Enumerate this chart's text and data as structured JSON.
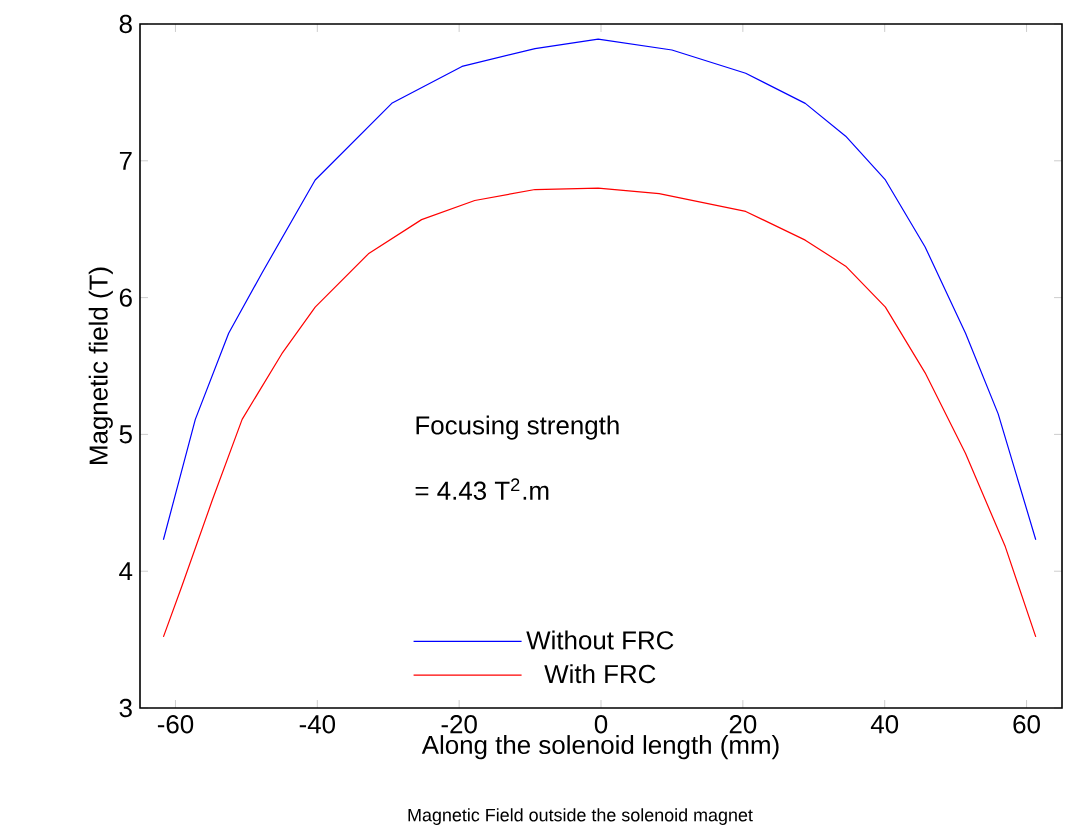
{
  "chart_data": {
    "type": "line",
    "title": "Magnetic Field outside the solenoid magnet",
    "xlabel": "Along the solenoid length (mm)",
    "ylabel": "Magnetic field (T)",
    "annotations": [
      "Focusing strength",
      "= 4.43 T$^{2}$.m"
    ],
    "xlim": [
      -65,
      65
    ],
    "ylim": [
      3,
      8
    ],
    "xticks": [
      -60,
      -40,
      -20,
      0,
      20,
      40,
      60
    ],
    "yticks": [
      3,
      4,
      5,
      6,
      7,
      8
    ],
    "grid": false,
    "legend": "bottom",
    "marker": "none",
    "line_style": "solid",
    "series": [
      {
        "name": "Without FRC",
        "color": "#0000ff",
        "x": [
          -61.7,
          -57.2,
          -52.5,
          -47.8,
          -40.3,
          -29.5,
          -19.6,
          -9.3,
          -0.4,
          10,
          20.4,
          28.8,
          34.5,
          40.1,
          45.7,
          51.4,
          56,
          61.3
        ],
        "values": [
          4.23,
          5.11,
          5.74,
          6.18,
          6.86,
          7.42,
          7.69,
          7.82,
          7.89,
          7.81,
          7.64,
          7.42,
          7.18,
          6.86,
          6.37,
          5.74,
          5.15,
          4.23
        ]
      },
      {
        "name": "With FRC",
        "color": "#ff0000",
        "x": [
          -61.7,
          -59.1,
          -54.8,
          -50.6,
          -45,
          -40.3,
          -32.8,
          -25.3,
          -17.8,
          -9.3,
          -0.4,
          8.2,
          20.4,
          28.8,
          34.5,
          40.1,
          45.7,
          51.4,
          57,
          61.3
        ],
        "values": [
          3.52,
          3.89,
          4.52,
          5.11,
          5.59,
          5.93,
          6.32,
          6.57,
          6.71,
          6.79,
          6.8,
          6.76,
          6.63,
          6.42,
          6.23,
          5.93,
          5.45,
          4.86,
          4.18,
          3.52
        ]
      }
    ]
  }
}
